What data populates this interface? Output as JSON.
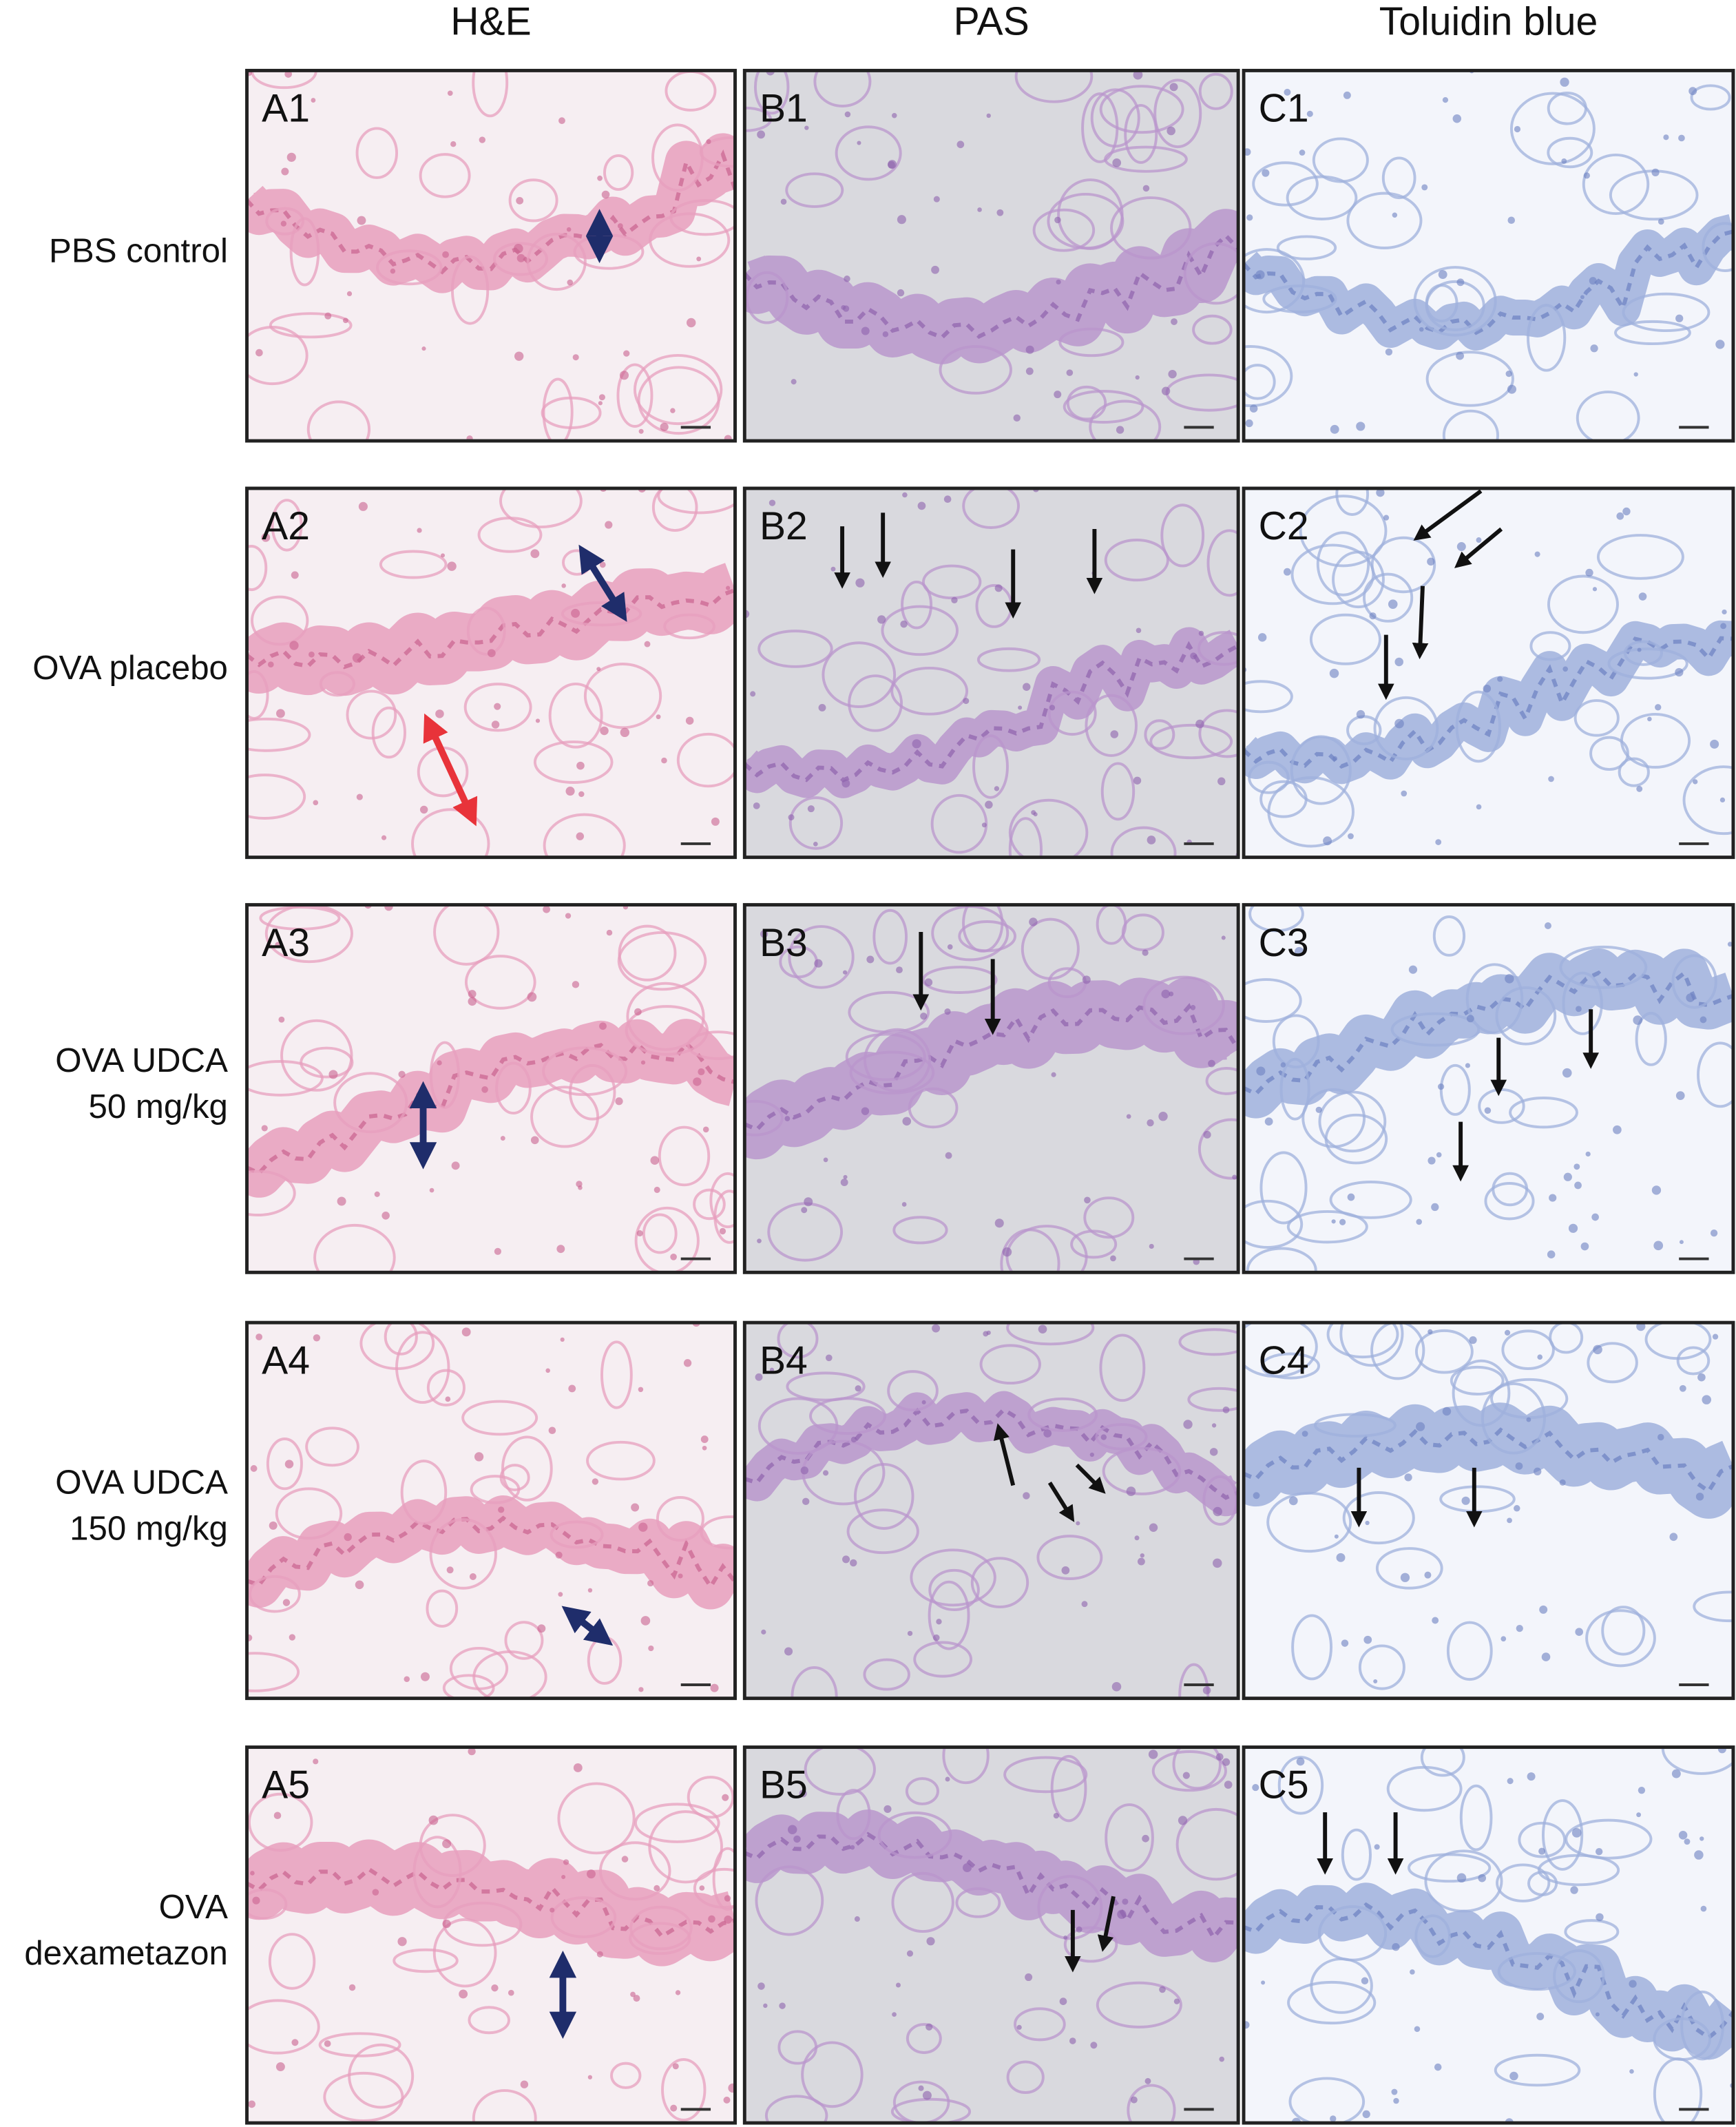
{
  "columns": [
    "H&E",
    "PAS",
    "Toluidin blue"
  ],
  "rows": [
    {
      "label": [
        "PBS control"
      ],
      "panels": [
        "A1",
        "B1",
        "C1"
      ]
    },
    {
      "label": [
        "OVA placebo"
      ],
      "panels": [
        "A2",
        "B2",
        "C2"
      ]
    },
    {
      "label": [
        "OVA UDCA",
        "50 mg/kg"
      ],
      "panels": [
        "A3",
        "B3",
        "C3"
      ]
    },
    {
      "label": [
        "OVA UDCA",
        "150 mg/kg"
      ],
      "panels": [
        "A4",
        "B4",
        "C4"
      ]
    },
    {
      "label": [
        "OVA",
        "dexametazon"
      ],
      "panels": [
        "A5",
        "B5",
        "C5"
      ]
    }
  ]
}
